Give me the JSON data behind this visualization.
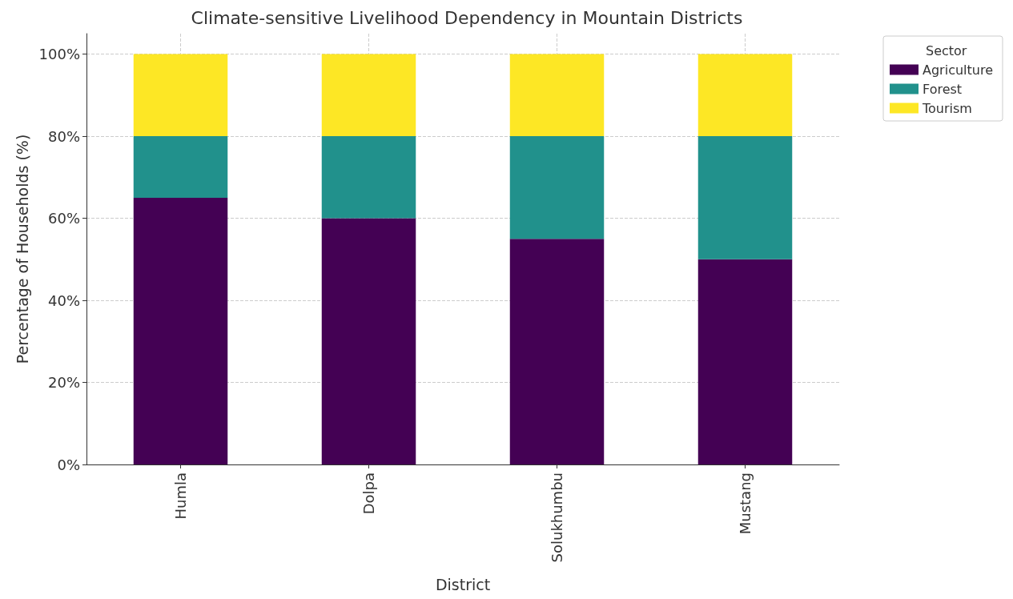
{
  "chart_data": {
    "type": "bar",
    "title": "Climate-sensitive Livelihood Dependency in Mountain Districts",
    "xlabel": "District",
    "ylabel": "Percentage of Households (%)",
    "legend_title": "Sector",
    "categories": [
      "Humla",
      "Dolpa",
      "Solukhumbu",
      "Mustang"
    ],
    "series": [
      {
        "name": "Agriculture",
        "color": "#440154",
        "values": [
          65,
          60,
          55,
          50
        ]
      },
      {
        "name": "Forest",
        "color": "#21918c",
        "values": [
          15,
          20,
          25,
          30
        ]
      },
      {
        "name": "Tourism",
        "color": "#fde725",
        "values": [
          20,
          20,
          20,
          20
        ]
      }
    ],
    "stacked": true,
    "ylim": [
      0,
      105
    ],
    "yticks": [
      {
        "value": 0,
        "label": "0%"
      },
      {
        "value": 20,
        "label": "20%"
      },
      {
        "value": 40,
        "label": "40%"
      },
      {
        "value": 60,
        "label": "60%"
      },
      {
        "value": 80,
        "label": "80%"
      },
      {
        "value": 100,
        "label": "100%"
      }
    ],
    "grid": true,
    "legend": "top right"
  }
}
